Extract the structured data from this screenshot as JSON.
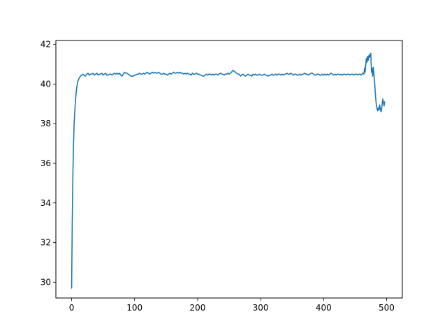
{
  "chart_data": {
    "type": "line",
    "title": "",
    "xlabel": "",
    "ylabel": "",
    "xlim": [
      -25,
      525
    ],
    "ylim": [
      29.2,
      42.2
    ],
    "xticks": [
      0,
      100,
      200,
      300,
      400,
      500
    ],
    "yticks": [
      30,
      32,
      34,
      36,
      38,
      40,
      42
    ],
    "grid": false,
    "legend": "none",
    "line_color": "#1f77b4",
    "series": [
      {
        "points": [
          [
            0,
            29.7
          ],
          [
            1,
            33.0
          ],
          [
            2,
            35.4
          ],
          [
            3,
            37.0
          ],
          [
            4,
            38.0
          ],
          [
            5,
            38.6
          ],
          [
            6,
            39.1
          ],
          [
            7,
            39.5
          ],
          [
            8,
            39.8
          ],
          [
            9,
            40.0
          ],
          [
            10,
            40.15
          ],
          [
            12,
            40.3
          ],
          [
            14,
            40.4
          ],
          [
            16,
            40.45
          ],
          [
            18,
            40.5
          ],
          [
            20,
            40.45
          ],
          [
            22,
            40.4
          ],
          [
            24,
            40.5
          ],
          [
            26,
            40.55
          ],
          [
            28,
            40.45
          ],
          [
            30,
            40.5
          ],
          [
            32,
            40.5
          ],
          [
            34,
            40.55
          ],
          [
            36,
            40.45
          ],
          [
            38,
            40.5
          ],
          [
            40,
            40.55
          ],
          [
            42,
            40.45
          ],
          [
            44,
            40.5
          ],
          [
            46,
            40.5
          ],
          [
            48,
            40.55
          ],
          [
            50,
            40.45
          ],
          [
            52,
            40.5
          ],
          [
            54,
            40.55
          ],
          [
            56,
            40.45
          ],
          [
            58,
            40.45
          ],
          [
            60,
            40.5
          ],
          [
            62,
            40.5
          ],
          [
            64,
            40.45
          ],
          [
            66,
            40.5
          ],
          [
            68,
            40.55
          ],
          [
            70,
            40.5
          ],
          [
            72,
            40.55
          ],
          [
            74,
            40.5
          ],
          [
            76,
            40.55
          ],
          [
            78,
            40.45
          ],
          [
            80,
            40.4
          ],
          [
            82,
            40.5
          ],
          [
            84,
            40.6
          ],
          [
            86,
            40.55
          ],
          [
            88,
            40.55
          ],
          [
            90,
            40.5
          ],
          [
            92,
            40.45
          ],
          [
            94,
            40.4
          ],
          [
            96,
            40.4
          ],
          [
            98,
            40.4
          ],
          [
            100,
            40.45
          ],
          [
            102,
            40.45
          ],
          [
            104,
            40.5
          ],
          [
            106,
            40.5
          ],
          [
            108,
            40.55
          ],
          [
            110,
            40.5
          ],
          [
            112,
            40.5
          ],
          [
            114,
            40.55
          ],
          [
            116,
            40.5
          ],
          [
            118,
            40.55
          ],
          [
            120,
            40.6
          ],
          [
            122,
            40.55
          ],
          [
            124,
            40.5
          ],
          [
            126,
            40.55
          ],
          [
            128,
            40.6
          ],
          [
            130,
            40.55
          ],
          [
            132,
            40.6
          ],
          [
            134,
            40.55
          ],
          [
            136,
            40.55
          ],
          [
            138,
            40.6
          ],
          [
            140,
            40.55
          ],
          [
            142,
            40.5
          ],
          [
            144,
            40.5
          ],
          [
            146,
            40.55
          ],
          [
            148,
            40.5
          ],
          [
            150,
            40.5
          ],
          [
            152,
            40.45
          ],
          [
            154,
            40.5
          ],
          [
            156,
            40.55
          ],
          [
            158,
            40.5
          ],
          [
            160,
            40.55
          ],
          [
            162,
            40.6
          ],
          [
            164,
            40.55
          ],
          [
            166,
            40.55
          ],
          [
            168,
            40.6
          ],
          [
            170,
            40.55
          ],
          [
            172,
            40.6
          ],
          [
            174,
            40.55
          ],
          [
            176,
            40.55
          ],
          [
            178,
            40.5
          ],
          [
            180,
            40.55
          ],
          [
            182,
            40.5
          ],
          [
            184,
            40.55
          ],
          [
            186,
            40.5
          ],
          [
            188,
            40.5
          ],
          [
            190,
            40.45
          ],
          [
            192,
            40.55
          ],
          [
            194,
            40.5
          ],
          [
            196,
            40.5
          ],
          [
            198,
            40.55
          ],
          [
            200,
            40.5
          ],
          [
            202,
            40.5
          ],
          [
            204,
            40.45
          ],
          [
            206,
            40.45
          ],
          [
            208,
            40.4
          ],
          [
            210,
            40.4
          ],
          [
            212,
            40.45
          ],
          [
            214,
            40.5
          ],
          [
            216,
            40.45
          ],
          [
            218,
            40.5
          ],
          [
            220,
            40.5
          ],
          [
            222,
            40.45
          ],
          [
            224,
            40.5
          ],
          [
            226,
            40.45
          ],
          [
            228,
            40.5
          ],
          [
            230,
            40.5
          ],
          [
            232,
            40.45
          ],
          [
            234,
            40.5
          ],
          [
            236,
            40.55
          ],
          [
            238,
            40.5
          ],
          [
            240,
            40.5
          ],
          [
            242,
            40.45
          ],
          [
            244,
            40.5
          ],
          [
            246,
            40.5
          ],
          [
            248,
            40.55
          ],
          [
            250,
            40.5
          ],
          [
            252,
            40.55
          ],
          [
            254,
            40.6
          ],
          [
            256,
            40.7
          ],
          [
            258,
            40.65
          ],
          [
            260,
            40.6
          ],
          [
            262,
            40.55
          ],
          [
            264,
            40.5
          ],
          [
            266,
            40.5
          ],
          [
            268,
            40.4
          ],
          [
            270,
            40.45
          ],
          [
            272,
            40.5
          ],
          [
            274,
            40.45
          ],
          [
            276,
            40.4
          ],
          [
            278,
            40.45
          ],
          [
            280,
            40.5
          ],
          [
            282,
            40.45
          ],
          [
            284,
            40.45
          ],
          [
            286,
            40.4
          ],
          [
            288,
            40.5
          ],
          [
            290,
            40.45
          ],
          [
            292,
            40.5
          ],
          [
            294,
            40.45
          ],
          [
            296,
            40.45
          ],
          [
            298,
            40.5
          ],
          [
            300,
            40.45
          ],
          [
            302,
            40.45
          ],
          [
            304,
            40.45
          ],
          [
            306,
            40.5
          ],
          [
            308,
            40.45
          ],
          [
            310,
            40.45
          ],
          [
            312,
            40.4
          ],
          [
            314,
            40.45
          ],
          [
            316,
            40.45
          ],
          [
            318,
            40.5
          ],
          [
            320,
            40.45
          ],
          [
            322,
            40.45
          ],
          [
            324,
            40.5
          ],
          [
            326,
            40.45
          ],
          [
            328,
            40.5
          ],
          [
            330,
            40.5
          ],
          [
            332,
            40.45
          ],
          [
            334,
            40.5
          ],
          [
            336,
            40.45
          ],
          [
            338,
            40.5
          ],
          [
            340,
            40.5
          ],
          [
            342,
            40.55
          ],
          [
            344,
            40.5
          ],
          [
            346,
            40.5
          ],
          [
            348,
            40.55
          ],
          [
            350,
            40.5
          ],
          [
            352,
            40.45
          ],
          [
            354,
            40.5
          ],
          [
            356,
            40.5
          ],
          [
            358,
            40.45
          ],
          [
            360,
            40.45
          ],
          [
            362,
            40.5
          ],
          [
            364,
            40.45
          ],
          [
            366,
            40.5
          ],
          [
            368,
            40.5
          ],
          [
            370,
            40.55
          ],
          [
            372,
            40.5
          ],
          [
            374,
            40.5
          ],
          [
            376,
            40.45
          ],
          [
            378,
            40.5
          ],
          [
            380,
            40.55
          ],
          [
            382,
            40.55
          ],
          [
            384,
            40.5
          ],
          [
            386,
            40.45
          ],
          [
            388,
            40.45
          ],
          [
            390,
            40.5
          ],
          [
            392,
            40.5
          ],
          [
            394,
            40.45
          ],
          [
            396,
            40.45
          ],
          [
            398,
            40.5
          ],
          [
            400,
            40.45
          ],
          [
            402,
            40.5
          ],
          [
            404,
            40.45
          ],
          [
            406,
            40.5
          ],
          [
            408,
            40.45
          ],
          [
            410,
            40.5
          ],
          [
            412,
            40.55
          ],
          [
            414,
            40.5
          ],
          [
            416,
            40.45
          ],
          [
            418,
            40.5
          ],
          [
            420,
            40.45
          ],
          [
            422,
            40.5
          ],
          [
            424,
            40.5
          ],
          [
            426,
            40.45
          ],
          [
            428,
            40.5
          ],
          [
            430,
            40.45
          ],
          [
            432,
            40.5
          ],
          [
            434,
            40.5
          ],
          [
            436,
            40.45
          ],
          [
            438,
            40.5
          ],
          [
            440,
            40.5
          ],
          [
            442,
            40.45
          ],
          [
            444,
            40.5
          ],
          [
            446,
            40.5
          ],
          [
            448,
            40.45
          ],
          [
            450,
            40.5
          ],
          [
            452,
            40.5
          ],
          [
            454,
            40.45
          ],
          [
            456,
            40.5
          ],
          [
            458,
            40.5
          ],
          [
            460,
            40.45
          ],
          [
            462,
            40.55
          ],
          [
            464,
            40.5
          ],
          [
            465,
            40.8
          ],
          [
            466,
            40.6
          ],
          [
            467,
            41.0
          ],
          [
            468,
            41.3
          ],
          [
            469,
            41.1
          ],
          [
            470,
            41.4
          ],
          [
            471,
            41.2
          ],
          [
            472,
            41.45
          ],
          [
            473,
            41.35
          ],
          [
            474,
            41.5
          ],
          [
            475,
            41.55
          ],
          [
            476,
            40.6
          ],
          [
            477,
            40.8
          ],
          [
            478,
            40.4
          ],
          [
            479,
            40.85
          ],
          [
            480,
            40.5
          ],
          [
            481,
            40.1
          ],
          [
            482,
            39.6
          ],
          [
            483,
            39.2
          ],
          [
            484,
            38.9
          ],
          [
            485,
            38.75
          ],
          [
            486,
            38.65
          ],
          [
            487,
            38.8
          ],
          [
            488,
            38.7
          ],
          [
            489,
            38.95
          ],
          [
            490,
            38.75
          ],
          [
            491,
            38.6
          ],
          [
            492,
            38.7
          ],
          [
            493,
            39.0
          ],
          [
            494,
            39.25
          ],
          [
            495,
            39.1
          ],
          [
            496,
            38.9
          ],
          [
            497,
            39.1
          ]
        ]
      }
    ]
  }
}
